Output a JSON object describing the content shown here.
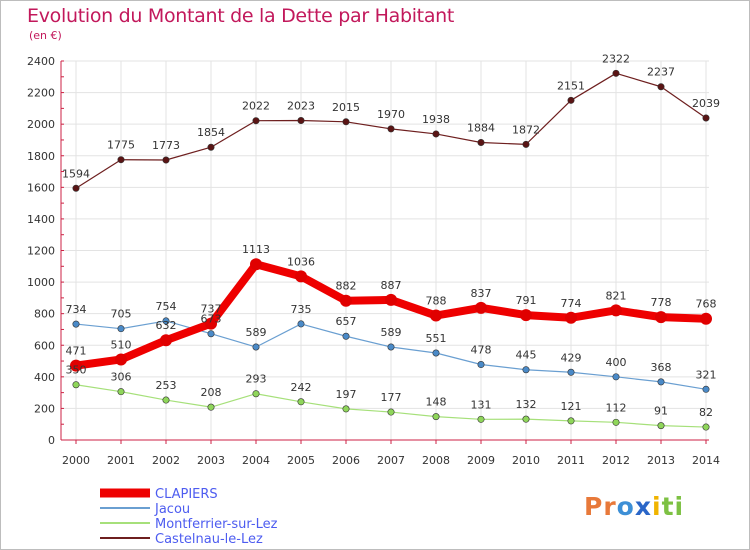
{
  "chart_data": {
    "type": "line",
    "title": "Evolution du Montant de la Dette par Habitant",
    "subtitle": "(en €)",
    "categories": [
      "2000",
      "2001",
      "2002",
      "2003",
      "2004",
      "2005",
      "2006",
      "2007",
      "2008",
      "2009",
      "2010",
      "2011",
      "2012",
      "2013",
      "2014"
    ],
    "ylim": [
      0,
      2400
    ],
    "yticks": [
      0,
      200,
      400,
      600,
      800,
      1000,
      1200,
      1400,
      1600,
      1800,
      2000,
      2200,
      2400
    ],
    "grid": true,
    "legend_position": "bottom-left",
    "series": [
      {
        "name": "Castelnau-le-Lez",
        "color": "#6e1f1f",
        "dot": "#5a1414",
        "width": 1.2,
        "values": [
          1594,
          1775,
          1773,
          1854,
          2022,
          2023,
          2015,
          1970,
          1938,
          1884,
          1872,
          2151,
          2322,
          2237,
          2039
        ]
      },
      {
        "name": "Montferrier-sur-Lez",
        "color": "#a6e07a",
        "dot": "#8fd65a",
        "width": 1.2,
        "values": [
          350,
          306,
          253,
          208,
          293,
          242,
          197,
          177,
          148,
          131,
          132,
          121,
          112,
          91,
          82
        ]
      },
      {
        "name": "Jacou",
        "color": "#6a9fd1",
        "dot": "#4a8ac8",
        "width": 1.2,
        "values": [
          734,
          705,
          754,
          673,
          589,
          735,
          657,
          589,
          551,
          478,
          445,
          429,
          400,
          368,
          321
        ]
      },
      {
        "name": "CLAPIERS",
        "color": "#ee0000",
        "dot": "#e00000",
        "width": 8,
        "values": [
          471,
          510,
          632,
          737,
          1113,
          1036,
          882,
          887,
          788,
          837,
          791,
          774,
          821,
          778,
          768
        ]
      }
    ],
    "legend": [
      {
        "name": "CLAPIERS",
        "color": "#ee0000",
        "width": 9
      },
      {
        "name": "Jacou",
        "color": "#6a9fd1",
        "width": 2
      },
      {
        "name": "Montferrier-sur-Lez",
        "color": "#a6e07a",
        "width": 2
      },
      {
        "name": "Castelnau-le-Lez",
        "color": "#6e1f1f",
        "width": 2
      }
    ],
    "legend_text_color": "#4d5cf0"
  },
  "logo": {
    "letters": [
      {
        "c": "P",
        "color": "#e8793a"
      },
      {
        "c": "r",
        "color": "#e8793a"
      },
      {
        "c": "o",
        "color": "#3d8fd6"
      },
      {
        "c": "x",
        "color": "#2a66c8"
      },
      {
        "c": "i",
        "color": "#f0b400"
      },
      {
        "c": "t",
        "color": "#7dc143"
      },
      {
        "c": "i",
        "color": "#7dc143"
      }
    ]
  }
}
